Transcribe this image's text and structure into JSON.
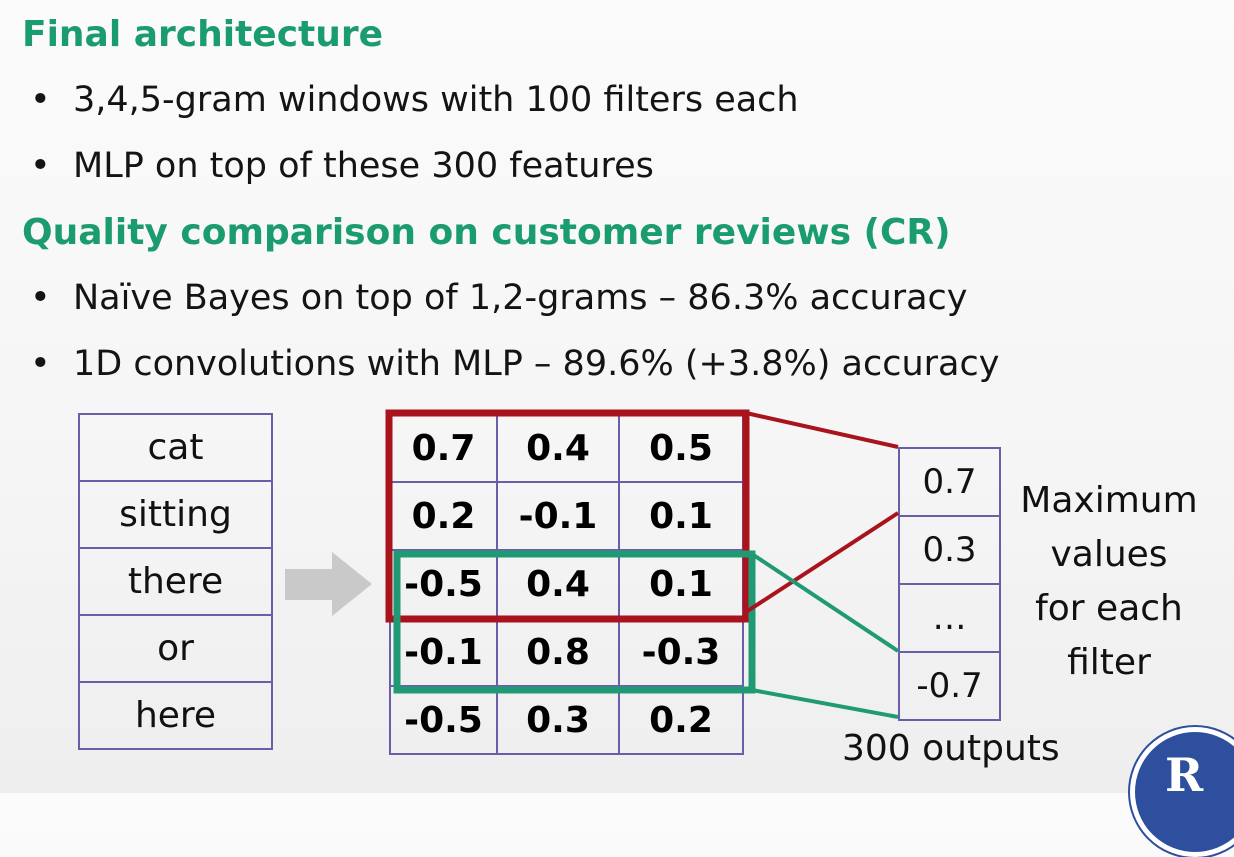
{
  "slide": {
    "heading1": "Final architecture",
    "bullets1": [
      "3,4,5-gram windows with 100 filters each",
      "MLP on top of these 300 features"
    ],
    "heading2": "Quality comparison on customer reviews (CR)",
    "bullets2": [
      "Naïve Bayes on top of 1,2-grams – 86.3% accuracy",
      "1D convolutions with MLP – 89.6% (+3.8%) accuracy"
    ],
    "bullet_symbol": "•"
  },
  "diagram": {
    "words": [
      "cat",
      "sitting",
      "there",
      "or",
      "here"
    ],
    "matrix": [
      [
        "0.7",
        "0.4",
        "0.5"
      ],
      [
        "0.2",
        "-0.1",
        "0.1"
      ],
      [
        "-0.5",
        "0.4",
        "0.1"
      ],
      [
        "-0.1",
        "0.8",
        "-0.3"
      ],
      [
        "-0.5",
        "0.3",
        "0.2"
      ]
    ],
    "outputs": [
      "0.7",
      "0.3",
      "…",
      "-0.7"
    ],
    "max_label_lines": [
      "Maximum",
      "values",
      "for each",
      "filter"
    ],
    "outputs_caption": "300 outputs",
    "colors": {
      "filter_red": "#a8131c",
      "filter_green": "#1f9a74",
      "cell_border": "#6b5ea8",
      "arrow": "#c9c9c9",
      "heading": "#1a9c6e"
    }
  },
  "logo": {
    "text": "R",
    "icon": "university-logo-icon"
  }
}
